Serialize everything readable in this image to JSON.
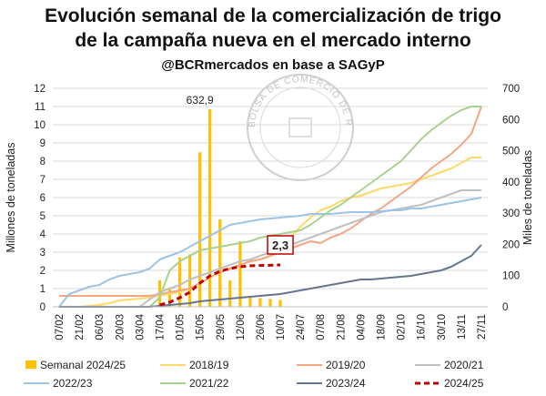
{
  "title_line1": "Evolución semanal de la comercialización de trigo",
  "title_line2": "de la campaña nueva en el mercado interno",
  "subtitle": "@BCRmercados en base a SAGyP",
  "watermark_text": "BOLSA DE COMERCIO DE ROSARIO",
  "chart_data": {
    "type": "line",
    "ylabel_left": "Millones de toneladas",
    "ylabel_right": "Miles de toneladas",
    "ylim_left": [
      0,
      12
    ],
    "ylim_right": [
      0,
      700
    ],
    "yticks_left": [
      "0",
      "1",
      "2",
      "3",
      "4",
      "5",
      "6",
      "7",
      "8",
      "9",
      "10",
      "11",
      "12"
    ],
    "yticks_right": [
      "0",
      "100",
      "200",
      "300",
      "400",
      "500",
      "600",
      "700"
    ],
    "x_tick_labels": [
      "07/02",
      "21/02",
      "06/03",
      "20/03",
      "03/04",
      "17/04",
      "01/05",
      "15/05",
      "29/05",
      "12/06",
      "26/06",
      "10/07",
      "24/07",
      "07/08",
      "21/08",
      "04/09",
      "18/09",
      "02/10",
      "16/10",
      "30/10",
      "13/11",
      "27/11"
    ],
    "x_tick_weeks": [
      0,
      2,
      4,
      6,
      8,
      10,
      12,
      14,
      16,
      18,
      20,
      22,
      24,
      26,
      28,
      30,
      32,
      34,
      36,
      38,
      40,
      42
    ],
    "grid": true,
    "legend_position": "bottom",
    "annotations": [
      {
        "text": "632,9",
        "week": 14,
        "value_right": 632.9
      },
      {
        "text": "2,3",
        "week": 22,
        "value_left": 2.3,
        "boxed": true
      }
    ],
    "bars": {
      "name": "Semanal 2024/25",
      "axis": "right",
      "color": "#FFC000",
      "weeks": [
        10,
        11,
        12,
        13,
        14,
        15,
        16,
        17,
        18,
        19,
        20,
        21,
        22
      ],
      "values": [
        85,
        62,
        158,
        168,
        495,
        632.9,
        280,
        85,
        210,
        30,
        28,
        25,
        22
      ]
    },
    "series": [
      {
        "name": "2018/19",
        "color": "#FFD966",
        "dash": false,
        "values": [
          0,
          0,
          0,
          0.05,
          0.1,
          0.2,
          0.35,
          0.4,
          0.45,
          0.5,
          0.6,
          0.7,
          0.8,
          1.0,
          1.3,
          1.6,
          1.9,
          2.1,
          2.3,
          2.5,
          2.6,
          2.8,
          3.2,
          3.8,
          4.4,
          4.9,
          5.3,
          5.5,
          5.8,
          6.0,
          6.1,
          6.3,
          6.5,
          6.6,
          6.7,
          6.8,
          7.0,
          7.2,
          7.4,
          7.6,
          7.9,
          8.2,
          8.2
        ]
      },
      {
        "name": "2019/20",
        "color": "#F4A582",
        "dash": false,
        "values": [
          0.6,
          0.6,
          0.6,
          0.6,
          0.6,
          0.6,
          0.6,
          0.6,
          0.6,
          0.6,
          0.7,
          0.8,
          0.9,
          1.0,
          1.3,
          1.6,
          1.9,
          2.1,
          2.3,
          2.5,
          2.6,
          2.8,
          3.0,
          3.2,
          3.4,
          3.6,
          3.5,
          3.8,
          4.0,
          4.3,
          4.7,
          5.1,
          5.4,
          5.8,
          6.2,
          6.6,
          7.1,
          7.6,
          8.0,
          8.4,
          8.9,
          9.5,
          11.0
        ]
      },
      {
        "name": "2020/21",
        "color": "#C0C0C0",
        "dash": false,
        "values": [
          0,
          0,
          0,
          0,
          0,
          0,
          0,
          0,
          0,
          0.4,
          0.8,
          1.0,
          1.2,
          1.5,
          1.7,
          1.9,
          2.1,
          2.3,
          2.5,
          2.6,
          2.8,
          3.0,
          3.2,
          3.4,
          3.6,
          3.8,
          4.0,
          4.2,
          4.4,
          4.6,
          4.8,
          5.0,
          5.2,
          5.3,
          5.4,
          5.5,
          5.6,
          5.8,
          6.0,
          6.2,
          6.4,
          6.4,
          6.4
        ]
      },
      {
        "name": "2022/23",
        "color": "#9DC3E6",
        "dash": false,
        "values": [
          0,
          0.7,
          0.9,
          1.1,
          1.2,
          1.5,
          1.7,
          1.8,
          1.9,
          2.1,
          2.6,
          2.8,
          3.0,
          3.3,
          3.6,
          3.9,
          4.2,
          4.5,
          4.6,
          4.7,
          4.8,
          4.85,
          4.9,
          4.95,
          5.0,
          5.1,
          5.1,
          5.1,
          5.15,
          5.2,
          5.2,
          5.2,
          5.25,
          5.3,
          5.3,
          5.4,
          5.4,
          5.5,
          5.6,
          5.7,
          5.8,
          5.9,
          6.0
        ]
      },
      {
        "name": "2021/22",
        "color": "#A9D18E",
        "dash": false,
        "values": [
          0,
          0,
          0,
          0,
          0,
          0,
          0,
          0,
          0,
          0,
          0.5,
          2.0,
          2.5,
          2.8,
          3.1,
          3.2,
          3.3,
          3.4,
          3.5,
          3.6,
          3.8,
          3.9,
          4.0,
          4.1,
          4.2,
          4.5,
          4.9,
          5.3,
          5.6,
          6.0,
          6.4,
          6.8,
          7.2,
          7.6,
          8.0,
          8.6,
          9.2,
          9.7,
          10.1,
          10.5,
          10.8,
          11.0,
          11.0
        ]
      },
      {
        "name": "2023/24",
        "color": "#66758F",
        "dash": false,
        "values": [
          0,
          0,
          0,
          0,
          0,
          0,
          0,
          0,
          0,
          0,
          0.05,
          0.1,
          0.15,
          0.2,
          0.3,
          0.35,
          0.4,
          0.45,
          0.5,
          0.55,
          0.6,
          0.65,
          0.7,
          0.8,
          0.9,
          1.0,
          1.1,
          1.2,
          1.3,
          1.4,
          1.5,
          1.5,
          1.55,
          1.6,
          1.65,
          1.7,
          1.8,
          1.9,
          2.0,
          2.2,
          2.5,
          2.8,
          3.4
        ]
      },
      {
        "name": "2024/25",
        "color": "#C00000",
        "dash": true,
        "values": [
          null,
          null,
          null,
          null,
          null,
          null,
          null,
          null,
          null,
          null,
          0.1,
          0.25,
          0.5,
          0.8,
          1.3,
          1.7,
          1.95,
          2.1,
          2.2,
          2.25,
          2.27,
          2.28,
          2.3
        ]
      }
    ],
    "legend_order": [
      "Semanal 2024/25",
      "2018/19",
      "2019/20",
      "2020/21",
      "2022/23",
      "2021/22",
      "2023/24",
      "2024/25"
    ]
  }
}
